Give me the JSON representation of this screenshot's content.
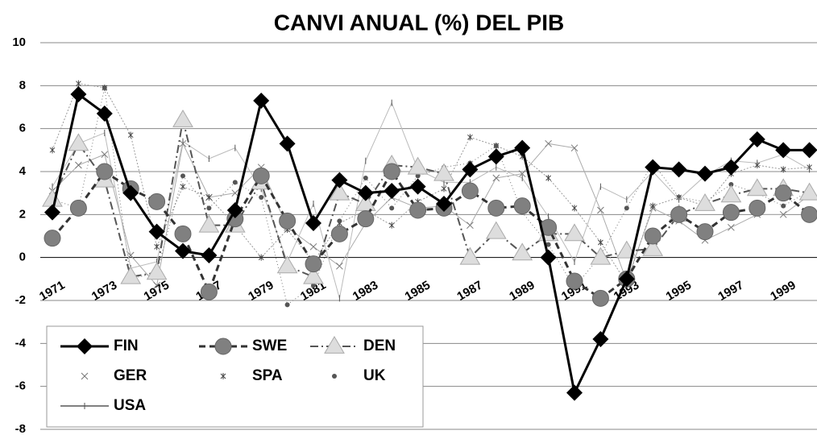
{
  "chart_data": {
    "type": "line",
    "title": "CANVI ANUAL (%) DEL PIB",
    "categories": [
      "1971",
      null,
      "1973",
      null,
      "1975",
      null,
      "1977",
      null,
      "1979",
      null,
      "1981",
      null,
      "1983",
      null,
      "1985",
      null,
      "1987",
      null,
      "1989",
      null,
      "1991",
      null,
      "1993",
      null,
      "1995",
      null,
      "1997",
      null,
      "1999",
      null
    ],
    "ylim": [
      -8,
      10
    ],
    "yticks": [
      -8,
      -6,
      -4,
      -2,
      0,
      2,
      4,
      6,
      8,
      10
    ],
    "grid": true,
    "legend": "bottom-left",
    "series": [
      {
        "name": "GER",
        "color": "#aaaaaa",
        "marker": "x",
        "width": 1,
        "dash": "",
        "values": [
          3.1,
          4.3,
          4.8,
          0.1,
          -1.3,
          5.3,
          2.8,
          3.0,
          4.2,
          1.4,
          0.5,
          -0.4,
          1.6,
          2.8,
          2.3,
          2.4,
          1.5,
          3.7,
          3.9,
          5.3,
          5.1,
          2.2,
          -1.1,
          2.3,
          1.7,
          0.8,
          1.4,
          2.0,
          2.0,
          2.9
        ]
      },
      {
        "name": "SPA",
        "color": "#999999",
        "marker": "star",
        "width": 1,
        "dash": "2 2",
        "values": [
          5.0,
          8.1,
          7.9,
          5.7,
          0.5,
          3.3,
          2.8,
          1.5,
          0.0,
          1.3,
          -0.2,
          1.6,
          2.2,
          1.5,
          2.6,
          3.2,
          5.6,
          5.2,
          4.7,
          3.7,
          2.3,
          0.7,
          -1.2,
          2.4,
          2.8,
          2.4,
          3.9,
          4.3,
          4.1,
          4.2
        ]
      },
      {
        "name": "UK",
        "color": "#777777",
        "marker": "dot",
        "width": 1,
        "dash": "1 3",
        "values": [
          2.7,
          2.3,
          7.9,
          -1.0,
          -0.7,
          3.8,
          2.3,
          3.5,
          2.8,
          -2.2,
          -1.3,
          1.7,
          3.7,
          2.3,
          3.8,
          4.2,
          4.4,
          5.2,
          2.1,
          0.6,
          -1.4,
          0.1,
          2.3,
          4.4,
          2.8,
          2.6,
          3.4,
          3.0,
          2.4,
          3.1
        ]
      },
      {
        "name": "USA",
        "color": "#bbbbbb",
        "marker": "plus",
        "width": 1,
        "dash": "",
        "values": [
          3.3,
          5.3,
          5.8,
          -0.5,
          -0.2,
          5.4,
          4.6,
          5.1,
          3.2,
          -0.2,
          2.5,
          -1.9,
          4.5,
          7.2,
          4.1,
          3.5,
          3.5,
          4.2,
          3.7,
          1.9,
          -0.2,
          3.3,
          2.7,
          4.0,
          2.7,
          3.8,
          4.5,
          4.4,
          4.8,
          4.1
        ]
      },
      {
        "name": "DEN",
        "color": "#dddddd",
        "marker": "triangle",
        "width": 2,
        "dash": "10 4 2 4",
        "values": [
          2.7,
          5.3,
          3.6,
          -0.9,
          -0.7,
          6.4,
          1.5,
          1.5,
          3.5,
          -0.4,
          -0.9,
          3.0,
          2.5,
          4.3,
          4.2,
          3.9,
          0.0,
          1.2,
          0.2,
          1.1,
          1.1,
          0.0,
          0.3,
          0.4,
          2.0,
          2.5,
          2.9,
          3.2,
          3.2,
          3.0
        ]
      },
      {
        "name": "SWE",
        "color": "#808080",
        "marker": "circle",
        "width": 3,
        "dash": "8 5",
        "values": [
          0.9,
          2.3,
          4.0,
          3.2,
          2.6,
          1.1,
          -1.6,
          1.8,
          3.8,
          1.7,
          -0.3,
          1.1,
          1.8,
          4.0,
          2.2,
          2.3,
          3.1,
          2.3,
          2.4,
          1.4,
          -1.1,
          -1.9,
          -1.0,
          1.0,
          2.0,
          1.2,
          2.1,
          2.3,
          3.0,
          2.0
        ]
      },
      {
        "name": "FIN",
        "color": "#000000",
        "marker": "diamond",
        "width": 3,
        "dash": "",
        "values": [
          2.1,
          7.6,
          6.7,
          3.0,
          1.2,
          0.3,
          0.1,
          2.2,
          7.3,
          5.3,
          1.6,
          3.6,
          3.0,
          3.1,
          3.3,
          2.5,
          4.1,
          4.7,
          5.1,
          0.0,
          -6.3,
          -3.8,
          -1.0,
          4.2,
          4.1,
          3.9,
          4.2,
          5.5,
          5.0,
          5.0
        ]
      }
    ]
  }
}
